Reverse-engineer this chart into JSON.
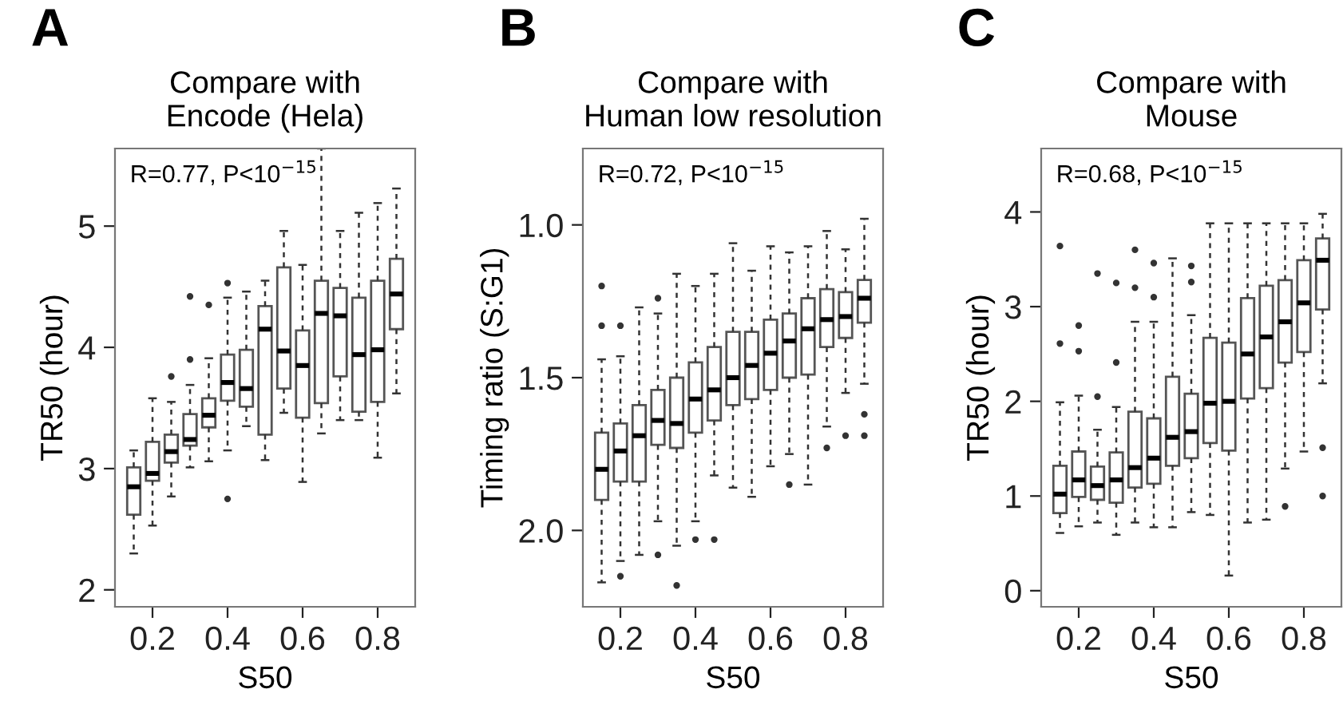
{
  "chart_data": [
    {
      "type": "box",
      "title": "Compare with\nEncode (Hela)",
      "xlabel": "S50",
      "ylabel": "TR50 (hour)",
      "annotations": [
        "A",
        "R=0.77, P<10$^{−15}$"
      ],
      "x": [
        0.15,
        0.2,
        0.25,
        0.3,
        0.35,
        0.4,
        0.45,
        0.5,
        0.55,
        0.6,
        0.65,
        0.7,
        0.75,
        0.8,
        0.85
      ],
      "xlim": [
        0.1,
        0.9
      ],
      "xticks": [
        0.2,
        0.4,
        0.6,
        0.8
      ],
      "ylim": [
        1.86,
        5.64
      ],
      "yticks": [
        2,
        3,
        4,
        5
      ],
      "grid": false,
      "legend": false,
      "boxes": [
        {
          "low": 2.3,
          "q1": 2.62,
          "median": 2.85,
          "q3": 3.01,
          "high": 3.15
        },
        {
          "low": 2.53,
          "q1": 2.9,
          "median": 2.96,
          "q3": 3.22,
          "high": 3.58
        },
        {
          "low": 2.77,
          "q1": 3.05,
          "median": 3.14,
          "q3": 3.28,
          "high": 3.55,
          "outliers": [
            3.76
          ]
        },
        {
          "low": 3.01,
          "q1": 3.19,
          "median": 3.24,
          "q3": 3.45,
          "high": 3.69,
          "outliers": [
            3.9,
            4.42
          ]
        },
        {
          "low": 3.06,
          "q1": 3.34,
          "median": 3.44,
          "q3": 3.58,
          "high": 3.91,
          "outliers": [
            4.35
          ]
        },
        {
          "low": 3.15,
          "q1": 3.56,
          "median": 3.71,
          "q3": 3.94,
          "high": 4.41,
          "outliers": [
            2.75,
            4.53
          ]
        },
        {
          "low": 3.35,
          "q1": 3.51,
          "median": 3.66,
          "q3": 3.98,
          "high": 4.46
        },
        {
          "low": 3.07,
          "q1": 3.28,
          "median": 4.15,
          "q3": 4.34,
          "high": 4.55
        },
        {
          "low": 3.46,
          "q1": 3.66,
          "median": 3.97,
          "q3": 4.66,
          "high": 4.96
        },
        {
          "low": 2.89,
          "q1": 3.42,
          "median": 3.85,
          "q3": 4.14,
          "high": 4.68
        },
        {
          "low": 3.29,
          "q1": 3.54,
          "median": 4.28,
          "q3": 4.55,
          "high": 5.64
        },
        {
          "low": 3.4,
          "q1": 3.76,
          "median": 4.26,
          "q3": 4.49,
          "high": 4.96
        },
        {
          "low": 3.4,
          "q1": 3.47,
          "median": 3.94,
          "q3": 4.41,
          "high": 5.11
        },
        {
          "low": 3.09,
          "q1": 3.55,
          "median": 3.98,
          "q3": 4.55,
          "high": 5.19
        },
        {
          "low": 3.62,
          "q1": 4.15,
          "median": 4.44,
          "q3": 4.73,
          "high": 5.31
        }
      ]
    },
    {
      "type": "box",
      "title": "Compare with\nHuman low resolution",
      "xlabel": "S50",
      "ylabel": "Timing ratio (S:G1)",
      "annotations": [
        "B",
        "R=0.72, P<10$^{−15}$"
      ],
      "x": [
        0.15,
        0.2,
        0.25,
        0.3,
        0.35,
        0.4,
        0.45,
        0.5,
        0.55,
        0.6,
        0.65,
        0.7,
        0.75,
        0.8,
        0.85
      ],
      "xlim": [
        0.1,
        0.9
      ],
      "xticks": [
        0.2,
        0.4,
        0.6,
        0.8
      ],
      "ylim": [
        2.25,
        0.75
      ],
      "yticks": [
        {
          "value": 1,
          "label": "1.0"
        },
        {
          "value": 1.5,
          "label": "1.5"
        },
        {
          "value": 2,
          "label": "2.0"
        }
      ],
      "grid": false,
      "legend": false,
      "boxes": [
        {
          "low": 1.44,
          "q1": 1.68,
          "median": 1.8,
          "q3": 1.9,
          "high": 2.17,
          "outliers": [
            1.2,
            1.33
          ]
        },
        {
          "low": 1.43,
          "q1": 1.65,
          "median": 1.74,
          "q3": 1.84,
          "high": 2.1,
          "outliers": [
            1.33,
            2.15
          ]
        },
        {
          "low": 1.27,
          "q1": 1.59,
          "median": 1.69,
          "q3": 1.84,
          "high": 2.08
        },
        {
          "low": 1.29,
          "q1": 1.54,
          "median": 1.64,
          "q3": 1.72,
          "high": 1.97,
          "outliers": [
            1.24,
            2.08
          ]
        },
        {
          "low": 1.16,
          "q1": 1.5,
          "median": 1.65,
          "q3": 1.73,
          "high": 2.05,
          "outliers": [
            2.18
          ]
        },
        {
          "low": 1.2,
          "q1": 1.45,
          "median": 1.57,
          "q3": 1.68,
          "high": 1.97,
          "outliers": [
            2.03
          ]
        },
        {
          "low": 1.16,
          "q1": 1.4,
          "median": 1.54,
          "q3": 1.64,
          "high": 1.82,
          "outliers": [
            2.03
          ]
        },
        {
          "low": 1.06,
          "q1": 1.35,
          "median": 1.5,
          "q3": 1.59,
          "high": 1.86
        },
        {
          "low": 1.15,
          "q1": 1.35,
          "median": 1.46,
          "q3": 1.57,
          "high": 1.89
        },
        {
          "low": 1.07,
          "q1": 1.31,
          "median": 1.42,
          "q3": 1.54,
          "high": 1.79
        },
        {
          "low": 1.09,
          "q1": 1.29,
          "median": 1.38,
          "q3": 1.5,
          "high": 1.75,
          "outliers": [
            1.85
          ]
        },
        {
          "low": 1.07,
          "q1": 1.24,
          "median": 1.34,
          "q3": 1.49,
          "high": 1.85
        },
        {
          "low": 1.02,
          "q1": 1.21,
          "median": 1.31,
          "q3": 1.4,
          "high": 1.66,
          "outliers": [
            1.73
          ]
        },
        {
          "low": 1.08,
          "q1": 1.22,
          "median": 1.3,
          "q3": 1.37,
          "high": 1.55,
          "outliers": [
            1.69
          ]
        },
        {
          "low": 0.98,
          "q1": 1.18,
          "median": 1.24,
          "q3": 1.32,
          "high": 1.52,
          "outliers": [
            1.62,
            1.69
          ]
        }
      ]
    },
    {
      "type": "box",
      "title": "Compare with\nMouse",
      "xlabel": "S50",
      "ylabel": "TR50 (hour)",
      "annotations": [
        "C",
        "R=0.68, P<10$^{−15}$"
      ],
      "x": [
        0.15,
        0.2,
        0.25,
        0.3,
        0.35,
        0.4,
        0.45,
        0.5,
        0.55,
        0.6,
        0.65,
        0.7,
        0.75,
        0.8,
        0.85
      ],
      "xlim": [
        0.1,
        0.9
      ],
      "xticks": [
        0.2,
        0.4,
        0.6,
        0.8
      ],
      "ylim": [
        -0.17,
        4.67
      ],
      "yticks": [
        0,
        1,
        2,
        3,
        4
      ],
      "grid": false,
      "legend": false,
      "boxes": [
        {
          "low": 0.61,
          "q1": 0.82,
          "median": 1.02,
          "q3": 1.32,
          "high": 1.99,
          "outliers": [
            2.61,
            3.64
          ]
        },
        {
          "low": 0.68,
          "q1": 0.99,
          "median": 1.17,
          "q3": 1.47,
          "high": 2.06,
          "outliers": [
            2.53,
            2.8
          ]
        },
        {
          "low": 0.72,
          "q1": 0.96,
          "median": 1.11,
          "q3": 1.31,
          "high": 1.7,
          "outliers": [
            2.05,
            3.35
          ]
        },
        {
          "low": 0.59,
          "q1": 0.93,
          "median": 1.17,
          "q3": 1.46,
          "high": 1.94,
          "outliers": [
            2.41,
            3.25
          ]
        },
        {
          "low": 0.72,
          "q1": 1.09,
          "median": 1.3,
          "q3": 1.89,
          "high": 2.84,
          "outliers": [
            3.2,
            3.6
          ]
        },
        {
          "low": 0.67,
          "q1": 1.13,
          "median": 1.4,
          "q3": 1.82,
          "high": 2.84,
          "outliers": [
            3.1,
            3.46
          ]
        },
        {
          "low": 0.67,
          "q1": 1.32,
          "median": 1.62,
          "q3": 2.26,
          "high": 3.51
        },
        {
          "low": 0.83,
          "q1": 1.4,
          "median": 1.68,
          "q3": 2.08,
          "high": 2.91,
          "outliers": [
            3.26,
            3.43
          ]
        },
        {
          "low": 0.8,
          "q1": 1.56,
          "median": 1.98,
          "q3": 2.67,
          "high": 3.88
        },
        {
          "low": 0.16,
          "q1": 1.48,
          "median": 2.0,
          "q3": 2.62,
          "high": 3.88
        },
        {
          "low": 0.72,
          "q1": 2.03,
          "median": 2.5,
          "q3": 3.09,
          "high": 3.88
        },
        {
          "low": 0.75,
          "q1": 2.14,
          "median": 2.68,
          "q3": 3.22,
          "high": 3.88
        },
        {
          "low": 1.29,
          "q1": 2.41,
          "median": 2.84,
          "q3": 3.28,
          "high": 3.88,
          "outliers": [
            0.89
          ]
        },
        {
          "low": 1.47,
          "q1": 2.52,
          "median": 3.04,
          "q3": 3.49,
          "high": 3.88
        },
        {
          "low": 2.19,
          "q1": 2.97,
          "median": 3.49,
          "q3": 3.72,
          "high": 3.98,
          "outliers": [
            1.0,
            1.51
          ]
        }
      ]
    }
  ]
}
